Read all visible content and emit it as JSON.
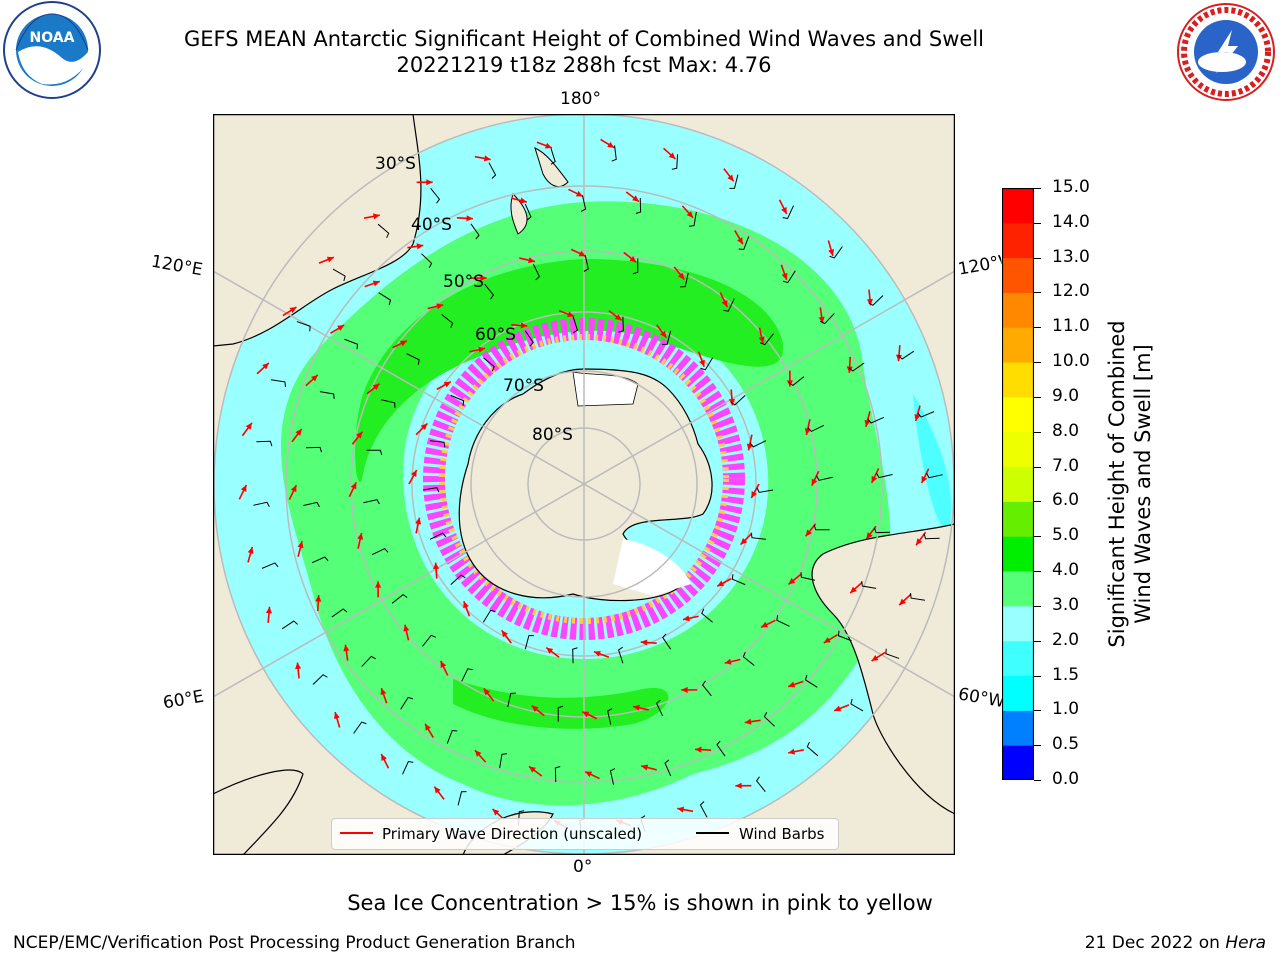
{
  "title": {
    "line1": "GEFS MEAN Antarctic Significant Height of Combined Wind Waves and Swell",
    "line2": "20221219 t18z 288h fcst   Max: 4.76"
  },
  "map": {
    "projection": "south-polar-stereographic",
    "longitude_labels": {
      "top": "180°",
      "bottom": "0°",
      "left_upper": "120°E",
      "left_lower": "60°E",
      "right_upper": "120°W",
      "right_lower": "60°W"
    },
    "latitude_labels": [
      "30°S",
      "40°S",
      "50°S",
      "60°S",
      "70°S",
      "80°S"
    ],
    "colors": {
      "land": "#efebd8",
      "wave_0_1_5": "#00ffff",
      "wave_1_5_2": "#4dffff",
      "wave_2_3": "#99ffff",
      "wave_3_4": "#55ff77",
      "wave_4_5": "#22ee22",
      "sea_ice_low": "#ff44ff",
      "sea_ice_high": "#ffcc44",
      "wave_arrow": "#ff0000",
      "wind_barb": "#000000",
      "graticule": "#bbbbbb"
    }
  },
  "colorbar": {
    "label_line1": "Significant Height of Combined",
    "label_line2": "Wind Waves and Swell [m]",
    "ticks": [
      "0.0",
      "0.5",
      "1.0",
      "1.5",
      "2.0",
      "3.0",
      "4.0",
      "5.0",
      "6.0",
      "7.0",
      "8.0",
      "9.0",
      "10.0",
      "11.0",
      "12.0",
      "13.0",
      "14.0",
      "15.0"
    ],
    "bin_colors": [
      "#0000ff",
      "#0080ff",
      "#00ffff",
      "#40ffff",
      "#99ffff",
      "#55ff77",
      "#00ee00",
      "#66ee00",
      "#ccff00",
      "#eeff00",
      "#ffff00",
      "#ffdd00",
      "#ffaa00",
      "#ff8800",
      "#ff5500",
      "#ff2200",
      "#ff0000"
    ]
  },
  "legend": {
    "wave_label": "Primary Wave Direction (unscaled)",
    "wind_label": "Wind Barbs"
  },
  "subtitle": "Sea Ice Concentration > 15% is shown in pink to yellow",
  "footer": {
    "credit": "NCEP/EMC/Verification Post Processing Product Generation Branch",
    "date_prefix": "21 Dec 2022 on ",
    "machine": "Hera"
  }
}
